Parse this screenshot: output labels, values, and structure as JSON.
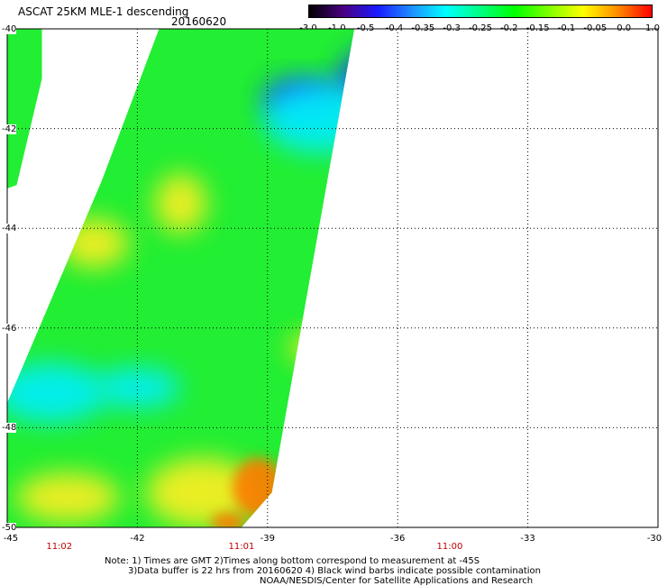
{
  "title": "ASCAT 25KM MLE-1 descending",
  "date": "20160620",
  "colorbar": {
    "labels": [
      "-3.0",
      "-1.0",
      "-0.5",
      "-0.4",
      "-0.35",
      "-0.3",
      "-0.25",
      "-0.2",
      "-0.15",
      "-0.1",
      "-0.05",
      "0.0",
      "1.0"
    ],
    "colors": [
      "#000000",
      "#4b0082",
      "#1a1aff",
      "#1e90ff",
      "#00ffff",
      "#00ff80",
      "#00ff00",
      "#7fff00",
      "#ffff00",
      "#ff8c00",
      "#ff0000"
    ]
  },
  "axes": {
    "lat_labels": [
      "-40",
      "-42",
      "-44",
      "-46",
      "-48",
      "-50"
    ],
    "lon_labels": [
      "-45",
      "-42",
      "-39",
      "-36",
      "-33",
      "-30"
    ],
    "lat_values": [
      -40,
      -42,
      -44,
      -46,
      -48,
      -50
    ],
    "lon_values": [
      -45,
      -42,
      -39,
      -36,
      -33,
      -30
    ],
    "time_labels": [
      {
        "text": "11:02",
        "lon": -43.8
      },
      {
        "text": "11:01",
        "lon": -39.6
      },
      {
        "text": "11:00",
        "lon": -34.8
      }
    ]
  },
  "map": {
    "region": "South Atlantic swath",
    "lat_range": [
      -50,
      -40
    ],
    "lon_range": [
      -45,
      -30
    ],
    "swath_polygon": [
      [
        -41.5,
        -40
      ],
      [
        -37.0,
        -40
      ],
      [
        -38.9,
        -49.3
      ],
      [
        -39.6,
        -50
      ],
      [
        -45,
        -50
      ],
      [
        -45,
        -47.5
      ],
      [
        -42.8,
        -43.0
      ]
    ],
    "gap_polygon": [
      [
        -45,
        -47.5
      ],
      [
        -45,
        -43.2
      ],
      [
        -43.7,
        -42.8
      ],
      [
        -42.8,
        -43.0
      ]
    ],
    "left_strip_polygon": [
      [
        -45,
        -40
      ],
      [
        -44.2,
        -40
      ],
      [
        -44.2,
        -41.0
      ],
      [
        -44.8,
        -43.2
      ],
      [
        -45,
        -43.2
      ]
    ],
    "features": [
      {
        "kind": "blue",
        "lon": -36.5,
        "lat": -41.1,
        "rx": 0.9,
        "ry": 0.7
      },
      {
        "kind": "blue",
        "lon": -38.2,
        "lat": -41.4,
        "rx": 0.9,
        "ry": 0.4
      },
      {
        "kind": "cyan",
        "lon": -37.8,
        "lat": -41.8,
        "rx": 1.3,
        "ry": 0.7
      },
      {
        "kind": "cyan",
        "lon": -44.0,
        "lat": -47.3,
        "rx": 1.3,
        "ry": 0.6
      },
      {
        "kind": "cyan",
        "lon": -42.0,
        "lat": -47.2,
        "rx": 1.0,
        "ry": 0.4
      },
      {
        "kind": "yellow",
        "lon": -40.5,
        "lat": -49.3,
        "rx": 1.3,
        "ry": 0.7
      },
      {
        "kind": "yellow",
        "lon": -43.6,
        "lat": -49.4,
        "rx": 1.2,
        "ry": 0.5
      },
      {
        "kind": "orange",
        "lon": -39.2,
        "lat": -49.2,
        "rx": 0.6,
        "ry": 0.6
      },
      {
        "kind": "orange",
        "lon": -39.9,
        "lat": -49.9,
        "rx": 0.4,
        "ry": 0.2
      },
      {
        "kind": "yellow",
        "lon": -38.0,
        "lat": -46.4,
        "rx": 0.5,
        "ry": 0.3
      },
      {
        "kind": "yellow",
        "lon": -43.0,
        "lat": -44.3,
        "rx": 0.8,
        "ry": 0.5
      },
      {
        "kind": "yellow",
        "lon": -41.0,
        "lat": -43.5,
        "rx": 0.6,
        "ry": 0.6
      }
    ]
  },
  "notes": [
    "Note: 1) Times are GMT 2)Times along bottom correspond to measurement at -45S",
    "3)Data buffer is 22 hrs from 20160620 4) Black wind barbs indicate possible contamination",
    "NOAA/NESDIS/Center for Satellite Applications and Research"
  ]
}
